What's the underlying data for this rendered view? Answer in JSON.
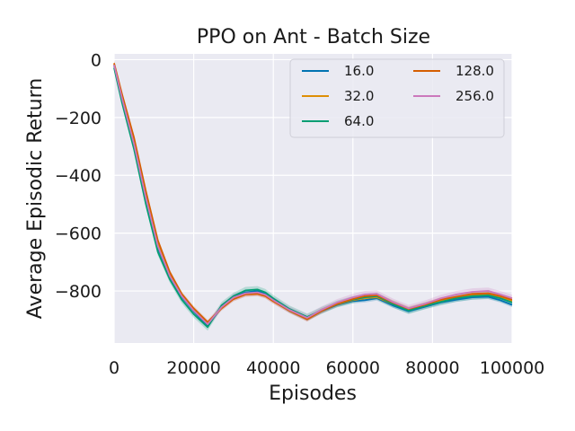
{
  "chart_data": {
    "type": "line",
    "title": "PPO on Ant - Batch Size",
    "xlabel": "Episodes",
    "ylabel": "Average Episodic Return",
    "xlim": [
      0,
      100000
    ],
    "ylim": [
      -980,
      20
    ],
    "xticks": [
      0,
      20000,
      40000,
      60000,
      80000,
      100000
    ],
    "xtick_labels": [
      "0",
      "20000",
      "40000",
      "60000",
      "80000",
      "100000"
    ],
    "yticks": [
      0,
      -200,
      -400,
      -600,
      -800
    ],
    "ytick_labels": [
      "0",
      "−200",
      "−400",
      "−600",
      "−800"
    ],
    "grid": true,
    "legend_position": "top-right",
    "legend_columns": 2,
    "x": [
      0,
      2000,
      5000,
      8000,
      11000,
      14000,
      17000,
      20000,
      23500,
      27000,
      30000,
      33000,
      36000,
      38000,
      40000,
      44000,
      48500,
      52000,
      56000,
      60000,
      63000,
      66000,
      70000,
      74000,
      78000,
      82000,
      86000,
      90000,
      94000,
      97000,
      100000
    ],
    "series": [
      {
        "name": "16.0",
        "color": "#0173b2",
        "band": 8,
        "values": [
          -20,
          -140,
          -300,
          -490,
          -650,
          -750,
          -820,
          -870,
          -920,
          -855,
          -820,
          -805,
          -800,
          -810,
          -830,
          -865,
          -895,
          -870,
          -848,
          -835,
          -832,
          -825,
          -850,
          -870,
          -855,
          -840,
          -830,
          -822,
          -820,
          -832,
          -848
        ]
      },
      {
        "name": "32.0",
        "color": "#de8f05",
        "band": 7,
        "values": [
          -15,
          -130,
          -285,
          -470,
          -640,
          -745,
          -815,
          -865,
          -912,
          -858,
          -825,
          -810,
          -808,
          -815,
          -833,
          -866,
          -896,
          -868,
          -846,
          -832,
          -825,
          -822,
          -845,
          -865,
          -852,
          -835,
          -825,
          -815,
          -812,
          -820,
          -835
        ]
      },
      {
        "name": "64.0",
        "color": "#029e73",
        "band": 12,
        "values": [
          -28,
          -150,
          -310,
          -500,
          -665,
          -760,
          -830,
          -880,
          -925,
          -850,
          -818,
          -798,
          -795,
          -805,
          -826,
          -862,
          -890,
          -868,
          -845,
          -830,
          -822,
          -818,
          -845,
          -868,
          -852,
          -838,
          -825,
          -818,
          -815,
          -825,
          -840
        ]
      },
      {
        "name": "128.0",
        "color": "#d55e00",
        "band": 8,
        "values": [
          -12,
          -120,
          -270,
          -455,
          -625,
          -735,
          -810,
          -860,
          -908,
          -860,
          -828,
          -812,
          -810,
          -818,
          -836,
          -868,
          -898,
          -870,
          -845,
          -828,
          -818,
          -815,
          -840,
          -862,
          -848,
          -830,
          -820,
          -810,
          -808,
          -818,
          -830
        ]
      },
      {
        "name": "256.0",
        "color": "#cc78bc",
        "band": 12,
        "values": [
          -18,
          -135,
          -292,
          -478,
          -645,
          -748,
          -818,
          -868,
          -915,
          -856,
          -823,
          -808,
          -805,
          -813,
          -832,
          -865,
          -893,
          -866,
          -840,
          -822,
          -812,
          -810,
          -838,
          -860,
          -845,
          -826,
          -812,
          -803,
          -800,
          -812,
          -825
        ]
      }
    ]
  }
}
